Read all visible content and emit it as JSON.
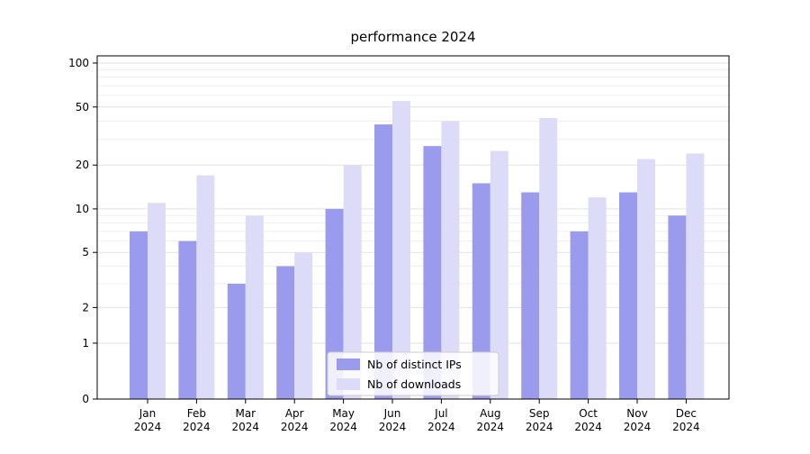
{
  "chart_data": {
    "type": "bar",
    "title": "performance 2024",
    "categories": [
      "Jan 2024",
      "Feb 2024",
      "Mar 2024",
      "Apr 2024",
      "May 2024",
      "Jun 2024",
      "Jul 2024",
      "Aug 2024",
      "Sep 2024",
      "Oct 2024",
      "Nov 2024",
      "Dec 2024"
    ],
    "series": [
      {
        "name": "Nb of distinct IPs",
        "color": "#9b9bee",
        "values": [
          7,
          6,
          3,
          4,
          10,
          38,
          27,
          15,
          13,
          7,
          13,
          9
        ]
      },
      {
        "name": "Nb of downloads",
        "color": "#dcdcf8",
        "values": [
          11,
          17,
          9,
          5,
          20,
          55,
          40,
          25,
          42,
          12,
          22,
          24
        ]
      }
    ],
    "yscale": "asinh",
    "ylim": [
      0,
      112
    ],
    "yticks": [
      0,
      1,
      2,
      5,
      10,
      20,
      50,
      100
    ],
    "yticks_minor": [
      3,
      4,
      6,
      7,
      8,
      9,
      30,
      40,
      60,
      70,
      80,
      90
    ],
    "grid": true,
    "legend": {
      "position": "lower center",
      "entries": [
        "Nb of distinct IPs",
        "Nb of downloads"
      ]
    }
  }
}
